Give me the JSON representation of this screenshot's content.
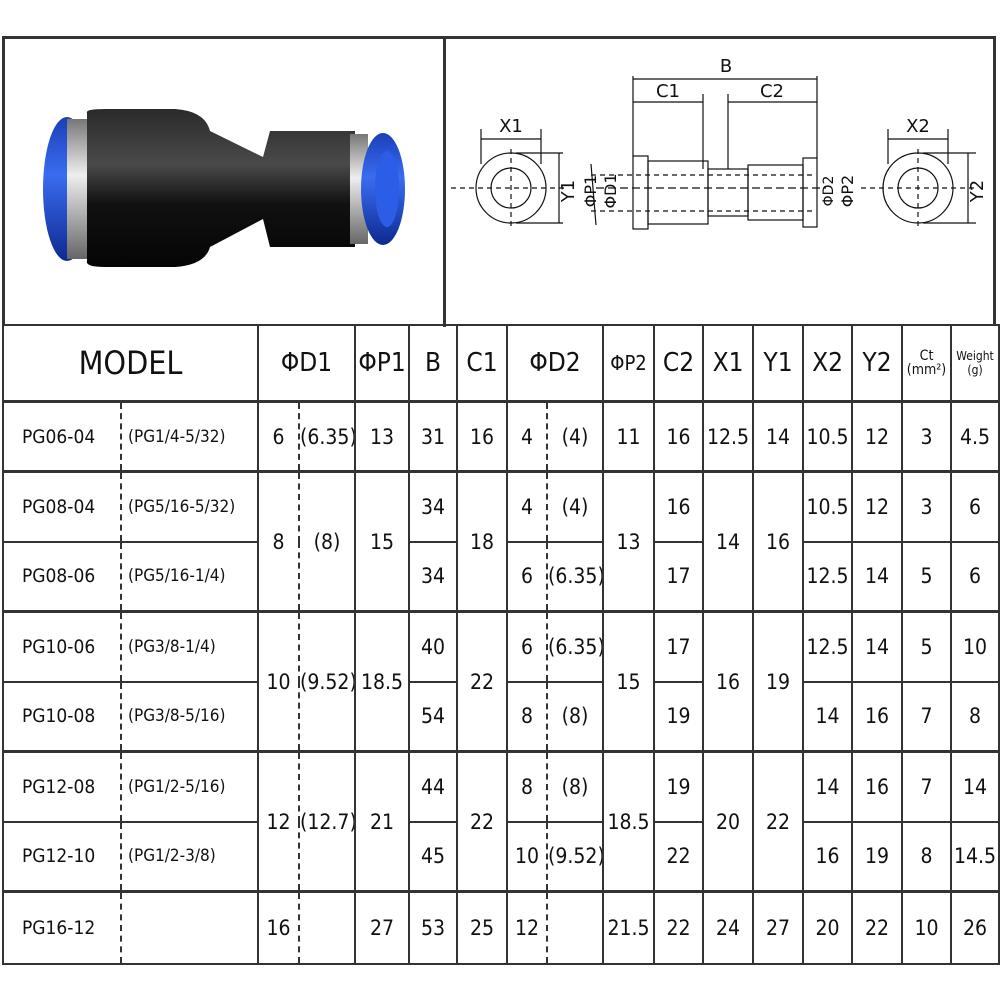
{
  "diagram": {
    "labels": {
      "x1": "X1",
      "y1": "Y1",
      "b": "B",
      "c1": "C1",
      "c2": "C2",
      "p1": "ΦP1",
      "d1": "ΦD1",
      "d2": "ΦD2",
      "p2": "ΦP2",
      "x2": "X2",
      "y2": "Y2"
    }
  },
  "colors": {
    "fitting_blue": "#1f4fd8",
    "fitting_body": "#141414",
    "ring_silver": "#b8b8b8",
    "grid": "#333333"
  },
  "table": {
    "headers": {
      "model": "MODEL",
      "d1": "ΦD1",
      "p1": "ΦP1",
      "b": "B",
      "c1": "C1",
      "d2": "ΦD2",
      "p2": "ΦP2",
      "c2": "C2",
      "x1": "X1",
      "y1": "Y1",
      "x2": "X2",
      "y2": "Y2",
      "ct": "Ct",
      "ct_unit": "(mm²)",
      "weight": "Weight",
      "weight_unit": "(g)"
    },
    "groups": [
      {
        "shared": {
          "d1": "6",
          "d1_inch": "(6.35)",
          "p1": "13",
          "c1": "16",
          "p2": "11",
          "x1": "12.5",
          "y1": "14"
        },
        "rows": [
          {
            "model": "PG06-04",
            "inch": "(PG1/4-5/32)",
            "b": "31",
            "d2": "4",
            "d2_inch": "(4)",
            "c2": "16",
            "x2": "10.5",
            "y2": "12",
            "ct": "3",
            "weight": "4.5"
          }
        ]
      },
      {
        "shared": {
          "d1": "8",
          "d1_inch": "(8)",
          "p1": "15",
          "c1": "18",
          "p2": "13",
          "x1": "14",
          "y1": "16"
        },
        "rows": [
          {
            "model": "PG08-04",
            "inch": "(PG5/16-5/32)",
            "b": "34",
            "d2": "4",
            "d2_inch": "(4)",
            "c2": "16",
            "x2": "10.5",
            "y2": "12",
            "ct": "3",
            "weight": "6"
          },
          {
            "model": "PG08-06",
            "inch": "(PG5/16-1/4)",
            "b": "34",
            "d2": "6",
            "d2_inch": "(6.35)",
            "c2": "17",
            "x2": "12.5",
            "y2": "14",
            "ct": "5",
            "weight": "6"
          }
        ]
      },
      {
        "shared": {
          "d1": "10",
          "d1_inch": "(9.52)",
          "p1": "18.5",
          "c1": "22",
          "p2": "15",
          "x1": "16",
          "y1": "19"
        },
        "rows": [
          {
            "model": "PG10-06",
            "inch": "(PG3/8-1/4)",
            "b": "40",
            "d2": "6",
            "d2_inch": "(6.35)",
            "c2": "17",
            "x2": "12.5",
            "y2": "14",
            "ct": "5",
            "weight": "10"
          },
          {
            "model": "PG10-08",
            "inch": "(PG3/8-5/16)",
            "b": "54",
            "d2": "8",
            "d2_inch": "(8)",
            "c2": "19",
            "x2": "14",
            "y2": "16",
            "ct": "7",
            "weight": "8"
          }
        ]
      },
      {
        "shared": {
          "d1": "12",
          "d1_inch": "(12.7)",
          "p1": "21",
          "c1": "22",
          "p2": "18.5",
          "x1": "20",
          "y1": "22"
        },
        "rows": [
          {
            "model": "PG12-08",
            "inch": "(PG1/2-5/16)",
            "b": "44",
            "d2": "8",
            "d2_inch": "(8)",
            "c2": "19",
            "x2": "14",
            "y2": "16",
            "ct": "7",
            "weight": "14"
          },
          {
            "model": "PG12-10",
            "inch": "(PG1/2-3/8)",
            "b": "45",
            "d2": "10",
            "d2_inch": "(9.52)",
            "c2": "22",
            "x2": "16",
            "y2": "19",
            "ct": "8",
            "weight": "14.5"
          }
        ]
      },
      {
        "shared": {
          "d1": "16",
          "d1_inch": "",
          "p1": "27",
          "c1": "25",
          "p2": "21.5",
          "x1": "24",
          "y1": "27"
        },
        "rows": [
          {
            "model": "PG16-12",
            "inch": "",
            "b": "53",
            "d2": "12",
            "d2_inch": "",
            "c2": "22",
            "x2": "20",
            "y2": "22",
            "ct": "10",
            "weight": "26"
          }
        ]
      }
    ]
  }
}
